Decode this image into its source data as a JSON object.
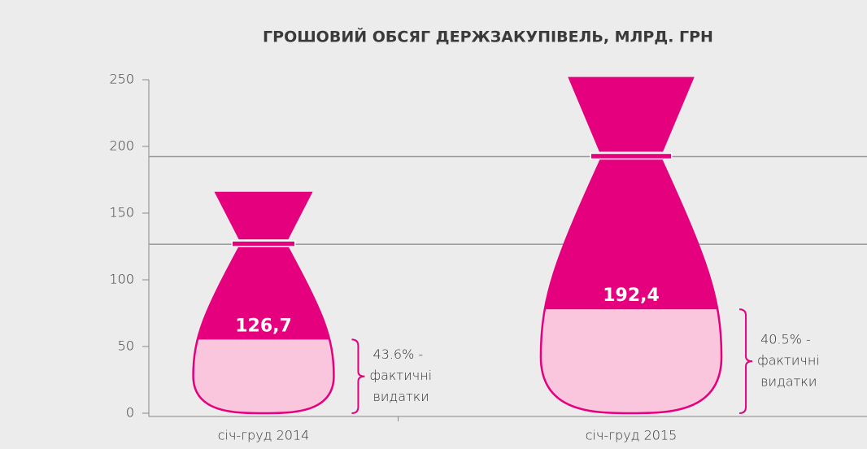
{
  "chart_data": {
    "type": "bag",
    "title": "ГРОШОВИЙ ОБСЯГ ДЕРЖЗАКУПІВЕЛЬ, МЛРД. ГРН",
    "categories": [
      "січ-груд 2014",
      "січ-груд 2015"
    ],
    "values": [
      126.7,
      192.4
    ],
    "value_labels": [
      "126,7",
      "192,4"
    ],
    "color": "#e5007e",
    "shares": [
      {
        "value": 43.6,
        "label": "43.6% -"
      },
      {
        "value": 40.5,
        "label": "40.5% -"
      }
    ],
    "share_color": "#f9c6de",
    "share_note": [
      "фактичні",
      "видатки"
    ],
    "ylim": [
      0,
      250
    ],
    "yticks": [
      0,
      50,
      100,
      150,
      200,
      250
    ]
  }
}
